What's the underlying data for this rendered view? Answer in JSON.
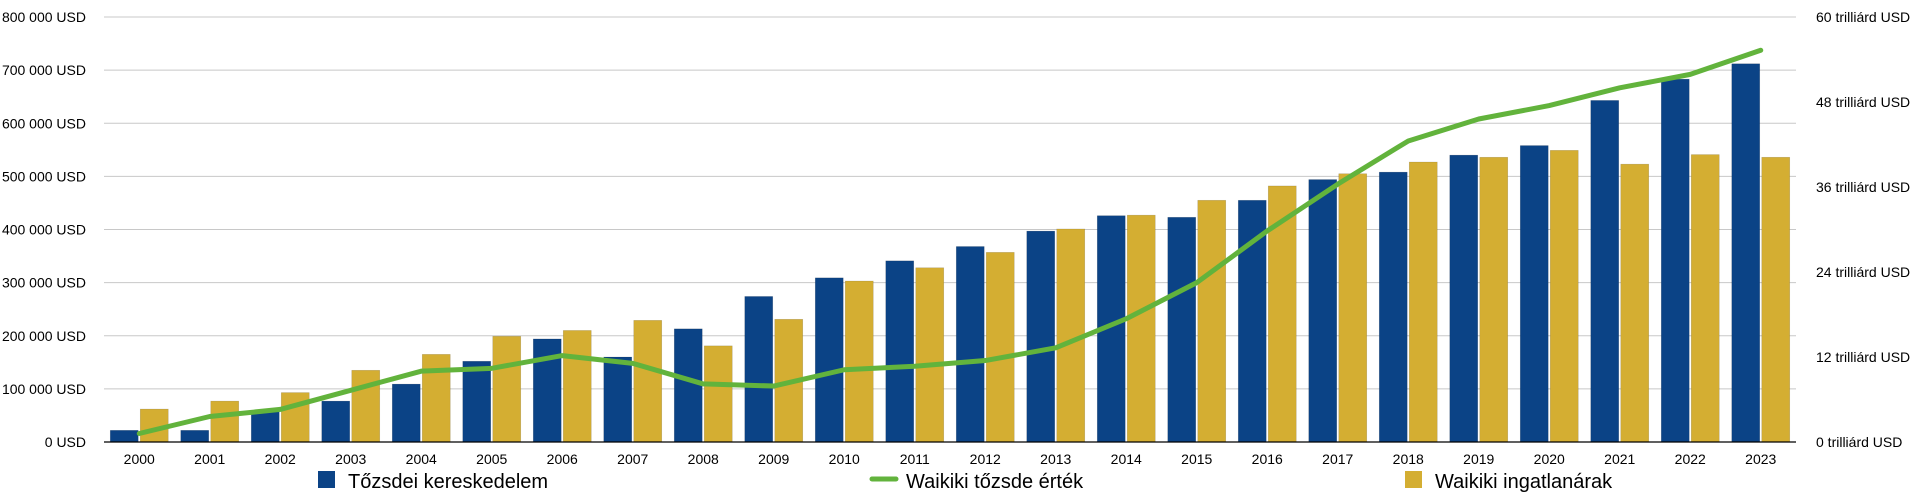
{
  "chart_data": {
    "type": "bar",
    "categories": [
      "2000",
      "2001",
      "2002",
      "2003",
      "2004",
      "2005",
      "2006",
      "2007",
      "2008",
      "2009",
      "2010",
      "2011",
      "2012",
      "2013",
      "2014",
      "2015",
      "2016",
      "2017",
      "2018",
      "2019",
      "2020",
      "2021",
      "2022",
      "2023"
    ],
    "series": [
      {
        "name": "Tőzsdei kereskedelem",
        "type": "bar",
        "axis": "left",
        "color": "#0b4386",
        "values": [
          22000,
          22000,
          57000,
          77000,
          109000,
          152000,
          194000,
          160000,
          213000,
          274000,
          309000,
          341000,
          368000,
          397000,
          426000,
          423000,
          455000,
          494000,
          508000,
          540000,
          558000,
          643000,
          683000,
          712000
        ]
      },
      {
        "name": "Waikiki ingatlanárak",
        "type": "bar",
        "axis": "left",
        "color": "#d4ae32",
        "values": [
          62000,
          77000,
          93000,
          135000,
          165000,
          199000,
          210000,
          229000,
          181000,
          231000,
          303000,
          328000,
          357000,
          401000,
          427000,
          455000,
          482000,
          505000,
          527000,
          536000,
          549000,
          523000,
          541000,
          536000
        ]
      },
      {
        "name": "Waikiki tőzsde érték",
        "type": "line",
        "axis": "right",
        "color": "#62b33c",
        "values": [
          1.2,
          3.6,
          4.6,
          7.3,
          10,
          10.4,
          12.2,
          11.1,
          8.2,
          7.9,
          10.2,
          10.7,
          11.5,
          13.3,
          17.4,
          22.5,
          29.8,
          36.4,
          42.5,
          45.6,
          47.5,
          50,
          51.9,
          55.3
        ]
      }
    ],
    "left_axis": {
      "ticks": [
        0,
        100000,
        200000,
        300000,
        400000,
        500000,
        600000,
        700000,
        800000
      ],
      "tick_labels": [
        "0 USD",
        "100 000 USD",
        "200 000 USD",
        "300 000 USD",
        "400 000 USD",
        "500 000 USD",
        "600 000 USD",
        "700 000 USD",
        "800 000 USD"
      ],
      "ylim": [
        0,
        800000
      ]
    },
    "right_axis": {
      "ticks": [
        0,
        12,
        24,
        36,
        48,
        60
      ],
      "tick_labels": [
        "0 trilliárd USD",
        "12 trilliárd USD",
        "24 trilliárd USD",
        "36 trilliárd USD",
        "48 trilliárd USD",
        "60 trilliárd USD"
      ],
      "ylim": [
        0,
        60
      ]
    },
    "grid": true,
    "legend_position": "bottom",
    "legend": [
      "Tőzsdei kereskedelem",
      "Waikiki tőzsde érték",
      "Waikiki ingatlanárak"
    ]
  }
}
